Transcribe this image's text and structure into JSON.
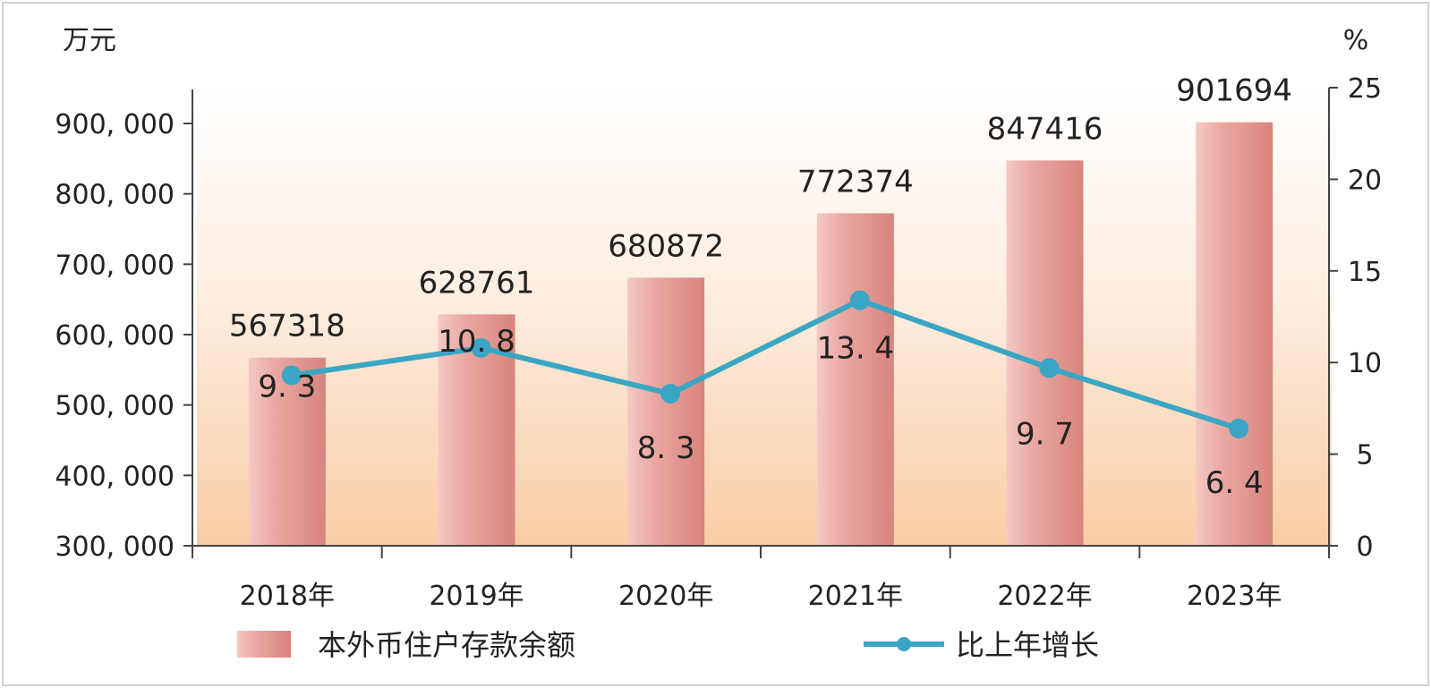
{
  "chart_data": {
    "type": "bar",
    "categories": [
      "2018年",
      "2019年",
      "2020年",
      "2021年",
      "2022年",
      "2023年"
    ],
    "series": [
      {
        "name": "本外币住户存款余额",
        "type": "bar",
        "axis": "left",
        "values": [
          567318,
          628761,
          680872,
          772374,
          847416,
          901694
        ],
        "labels": [
          "567318",
          "628761",
          "680872",
          "772374",
          "847416",
          "901694"
        ],
        "color": "#e8a5a0"
      },
      {
        "name": "比上年增长",
        "type": "line",
        "axis": "right",
        "values": [
          9.3,
          10.8,
          8.3,
          13.4,
          9.7,
          6.4
        ],
        "labels": [
          "9. 3",
          "10. 8",
          "8. 3",
          "13. 4",
          "9. 7",
          "6. 4"
        ],
        "color": "#3aa6c4"
      }
    ],
    "y_left": {
      "unit": "万元",
      "range": [
        300000,
        900000
      ],
      "ticks": [
        300000,
        400000,
        500000,
        600000,
        700000,
        800000,
        900000
      ],
      "tick_labels": [
        "300, 000",
        "400, 000",
        "500, 000",
        "600, 000",
        "700, 000",
        "800, 000",
        "900, 000"
      ]
    },
    "y_right": {
      "unit": "%",
      "range": [
        0,
        25
      ],
      "ticks": [
        0,
        5,
        10,
        15,
        20,
        25
      ],
      "tick_labels": [
        "0",
        "5",
        "10",
        "15",
        "20",
        "25"
      ]
    },
    "title": "",
    "grid": false,
    "legend_position": "bottom"
  }
}
